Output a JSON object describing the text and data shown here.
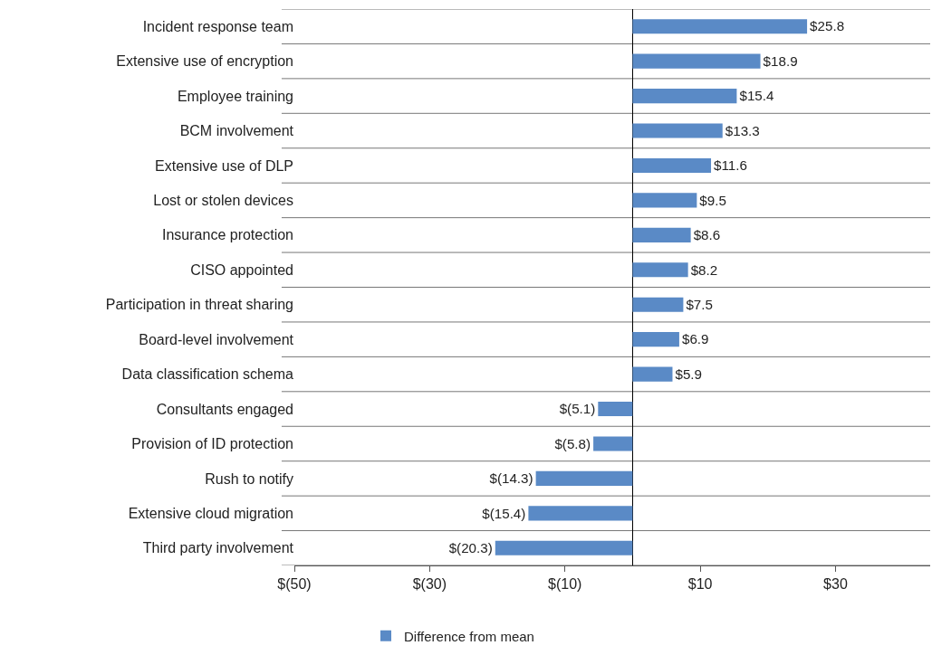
{
  "chart_data": {
    "type": "bar",
    "orientation": "horizontal",
    "categories": [
      "Incident response team",
      "Extensive use of encryption",
      "Employee training",
      "BCM involvement",
      "Extensive use of DLP",
      "Lost or stolen devices",
      "Insurance protection",
      "CISO appointed",
      "Participation in threat sharing",
      "Board-level involvement",
      "Data classification schema",
      "Consultants engaged",
      "Provision of ID protection",
      "Rush to notify",
      "Extensive cloud migration",
      "Third party involvement"
    ],
    "series": [
      {
        "name": "Difference from mean",
        "color": "#5a8ac6",
        "values": [
          25.8,
          18.9,
          15.4,
          13.3,
          11.6,
          9.5,
          8.6,
          8.2,
          7.5,
          6.9,
          5.9,
          -5.1,
          -5.8,
          -14.3,
          -15.4,
          -20.3
        ],
        "value_labels": [
          "$25.8",
          "$18.9",
          "$15.4",
          "$13.3",
          "$11.6",
          "$9.5",
          "$8.6",
          "$8.2",
          "$7.5",
          "$6.9",
          "$5.9",
          "$(5.1)",
          "$(5.8)",
          "$(14.3)",
          "$(15.4)",
          "$(20.3)"
        ]
      }
    ],
    "xlim": [
      -50,
      44
    ],
    "xticks": [
      {
        "value": -50,
        "label": "$(50)"
      },
      {
        "value": -30,
        "label": "$(30)"
      },
      {
        "value": -10,
        "label": "$(10)"
      },
      {
        "value": 10,
        "label": "$10"
      },
      {
        "value": 30,
        "label": "$30"
      }
    ],
    "grid": "y",
    "legend": "bottom"
  }
}
